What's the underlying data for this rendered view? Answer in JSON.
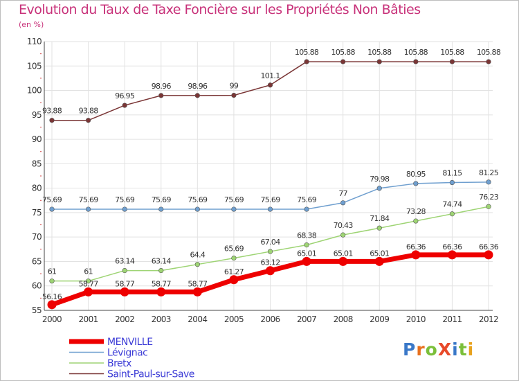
{
  "title": "Evolution du Taux de Taxe Foncière sur les Propriétés Non Bâties",
  "unit": "(en %)",
  "logo": {
    "text": "ProXiti",
    "letter_colors": [
      "#3a78c8",
      "#e8701e",
      "#7bbf3a",
      "#e84a2a",
      "#3a78c8",
      "#7bbf3a",
      "#e8a21e"
    ]
  },
  "chart_data": {
    "type": "line",
    "title": "Evolution du Taux de Taxe Foncière sur les Propriétés Non Bâties",
    "ylabel": "(en %)",
    "x": [
      "2000",
      "2001",
      "2002",
      "2003",
      "2004",
      "2005",
      "2006",
      "2007",
      "2008",
      "2009",
      "2010",
      "2011",
      "2012"
    ],
    "ylim": [
      55,
      110
    ],
    "yticks": [
      55,
      60,
      65,
      70,
      75,
      80,
      85,
      90,
      95,
      100,
      105,
      110
    ],
    "grid": true,
    "legend_position": "bottom-left",
    "series": [
      {
        "name": "MENVILLE",
        "color": "#ee0000",
        "values": [
          56.16,
          58.77,
          58.77,
          58.77,
          58.77,
          61.27,
          63.12,
          65.01,
          65.01,
          65.01,
          66.36,
          66.36,
          66.36
        ],
        "labels": [
          "56.16",
          "58.77",
          "58.77",
          "58.77",
          "58.77",
          "61.27",
          "63.12",
          "65.01",
          "65.01",
          "65.01",
          "66.36",
          "66.36",
          "66.36"
        ]
      },
      {
        "name": "Lévignac",
        "color": "#6f9fcf",
        "values": [
          75.69,
          75.69,
          75.69,
          75.69,
          75.69,
          75.69,
          75.69,
          75.69,
          77,
          79.98,
          80.95,
          81.15,
          81.25
        ],
        "labels": [
          "75.69",
          "75.69",
          "75.69",
          "75.69",
          "75.69",
          "75.69",
          "75.69",
          "75.69",
          "77",
          "79.98",
          "80.95",
          "81.15",
          "81.25"
        ]
      },
      {
        "name": "Bretx",
        "color": "#9ed474",
        "values": [
          61,
          61,
          63.14,
          63.14,
          64.4,
          65.69,
          67.04,
          68.38,
          70.43,
          71.84,
          73.28,
          74.74,
          76.23
        ],
        "labels": [
          "61",
          "61",
          "63.14",
          "63.14",
          "64.4",
          "65.69",
          "67.04",
          "68.38",
          "70.43",
          "71.84",
          "73.28",
          "74.74",
          "76.23"
        ]
      },
      {
        "name": "Saint-Paul-sur-Save",
        "color": "#7a3535",
        "values": [
          93.88,
          93.88,
          96.95,
          98.96,
          98.96,
          99,
          101.1,
          105.88,
          105.88,
          105.88,
          105.88,
          105.88,
          105.88
        ],
        "labels": [
          "93.88",
          "93.88",
          "96.95",
          "98.96",
          "98.96",
          "99",
          "101.1",
          "105.88",
          "105.88",
          "105.88",
          "105.88",
          "105.88",
          "105.88"
        ]
      }
    ]
  }
}
